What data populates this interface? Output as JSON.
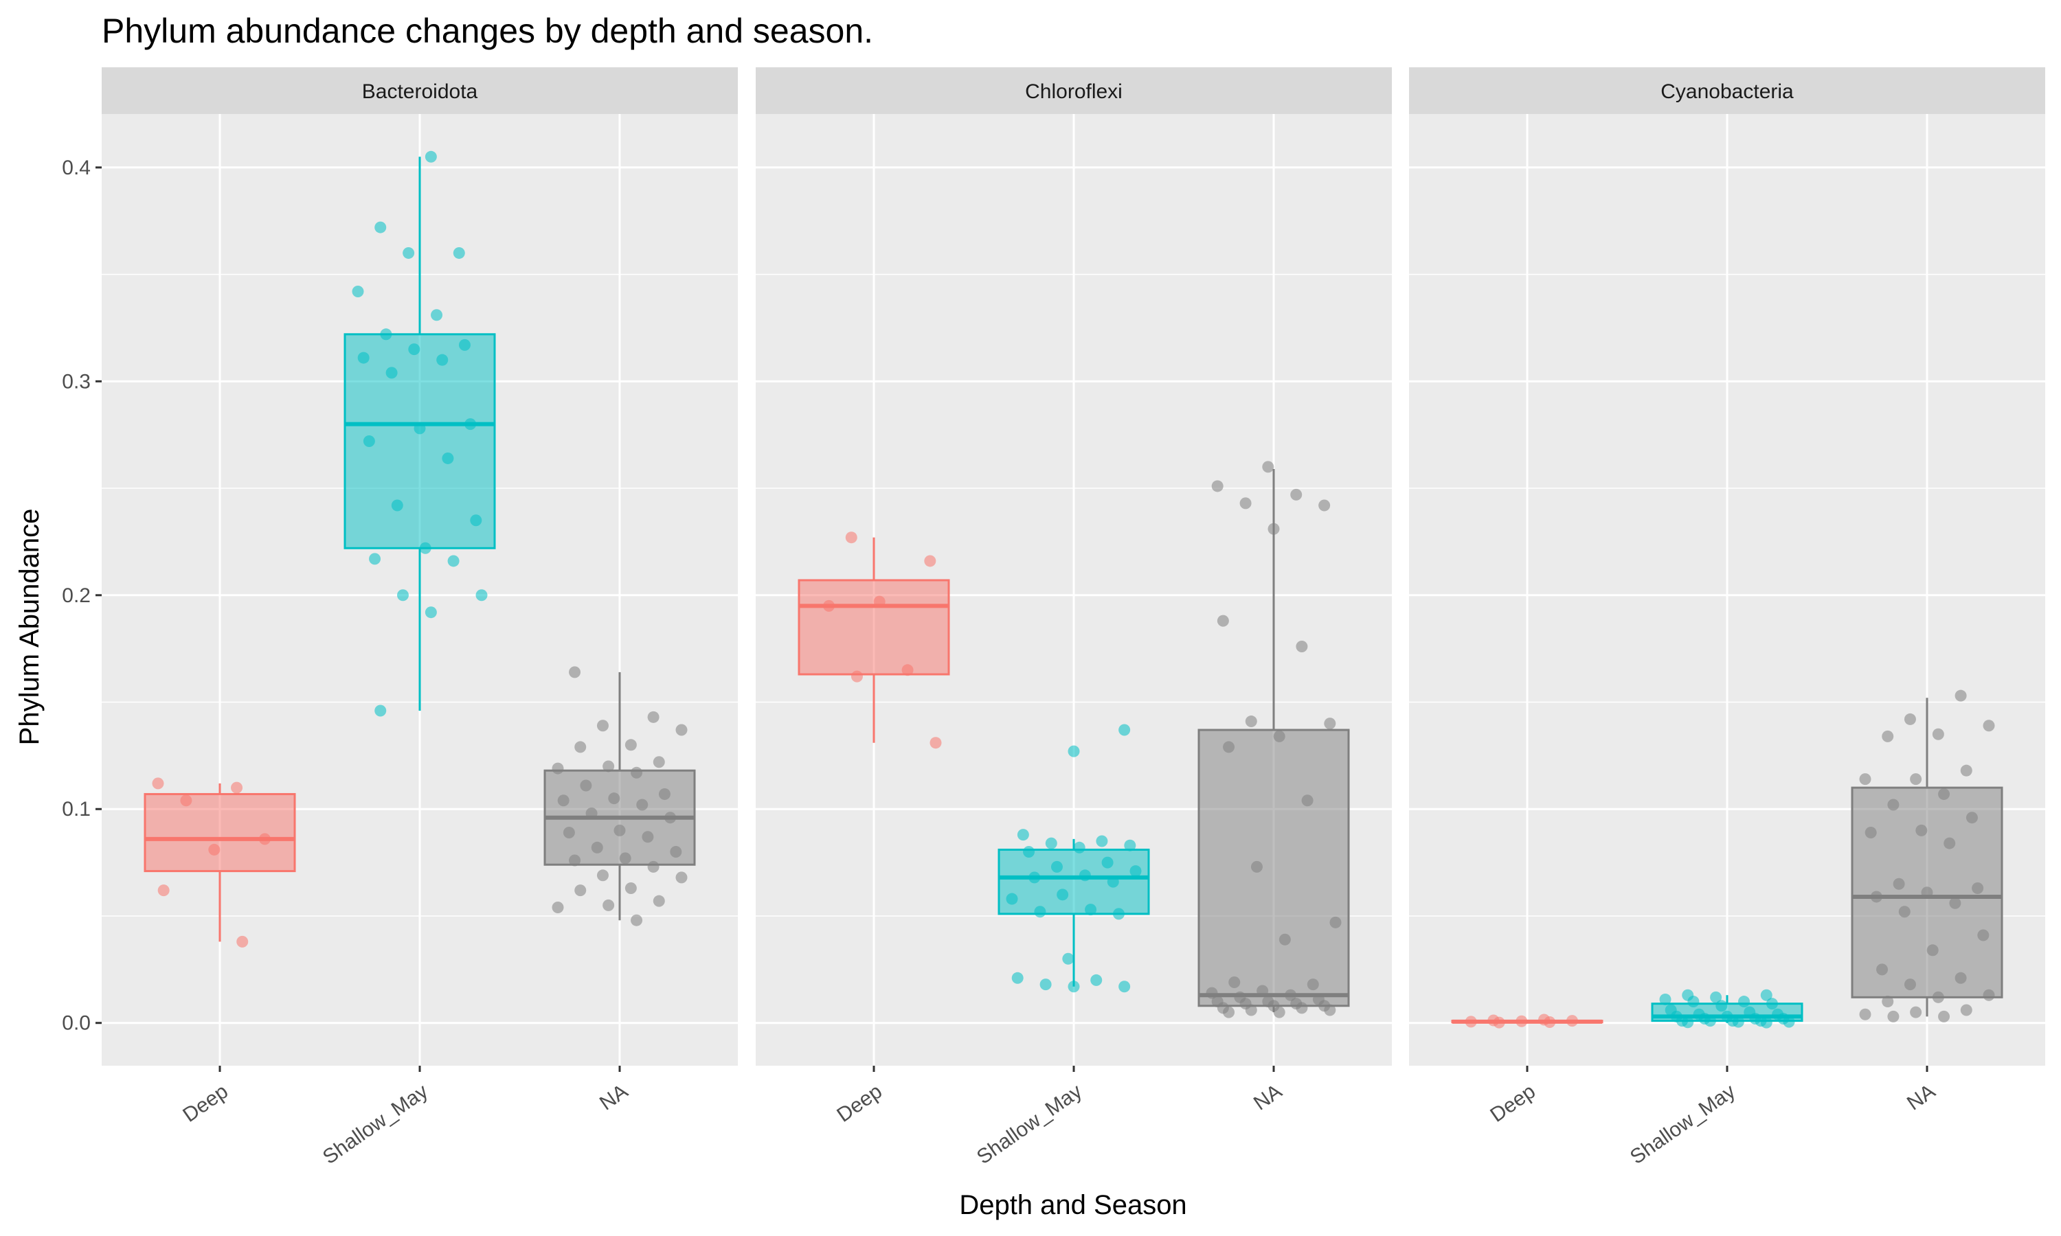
{
  "chart_data": {
    "type": "box",
    "title": "Phylum abundance changes by depth and season.",
    "xlabel": "Depth and Season",
    "ylabel": "Phylum Abundance",
    "categories": [
      "Deep",
      "Shallow_May",
      "NA"
    ],
    "yticks": [
      "0.0",
      "0.1",
      "0.2",
      "0.3",
      "0.4"
    ],
    "ylim": [
      -0.02,
      0.425
    ],
    "colors": {
      "Deep": "#F8766D",
      "Shallow_May": "#00BFC4",
      "NA": "#7F7F7F"
    },
    "panel_background": "#EBEBEB",
    "strip_background": "#D9D9D9",
    "grid": true,
    "legend": "none",
    "facets": [
      {
        "name": "Bacteroidota",
        "boxes": [
          {
            "category": "Deep",
            "whisker_low": 0.038,
            "q1": 0.071,
            "median": 0.086,
            "q3": 0.107,
            "whisker_high": 0.112,
            "points": [
              0.112,
              0.11,
              0.104,
              0.086,
              0.081,
              0.062,
              0.038
            ]
          },
          {
            "category": "Shallow_May",
            "whisker_low": 0.146,
            "q1": 0.222,
            "median": 0.28,
            "q3": 0.322,
            "whisker_high": 0.405,
            "points": [
              0.405,
              0.372,
              0.36,
              0.36,
              0.342,
              0.331,
              0.322,
              0.317,
              0.315,
              0.311,
              0.31,
              0.304,
              0.28,
              0.278,
              0.272,
              0.264,
              0.242,
              0.235,
              0.222,
              0.217,
              0.216,
              0.2,
              0.2,
              0.192,
              0.146
            ]
          },
          {
            "category": "NA",
            "whisker_low": 0.048,
            "q1": 0.074,
            "median": 0.096,
            "q3": 0.118,
            "whisker_high": 0.164,
            "points": [
              0.164,
              0.143,
              0.139,
              0.137,
              0.13,
              0.129,
              0.122,
              0.12,
              0.119,
              0.117,
              0.111,
              0.107,
              0.105,
              0.104,
              0.102,
              0.098,
              0.096,
              0.09,
              0.089,
              0.087,
              0.082,
              0.08,
              0.077,
              0.076,
              0.073,
              0.069,
              0.068,
              0.063,
              0.062,
              0.057,
              0.055,
              0.054,
              0.048
            ]
          }
        ]
      },
      {
        "name": "Chloroflexi",
        "boxes": [
          {
            "category": "Deep",
            "whisker_low": 0.131,
            "q1": 0.163,
            "median": 0.195,
            "q3": 0.207,
            "whisker_high": 0.227,
            "points": [
              0.227,
              0.216,
              0.197,
              0.195,
              0.165,
              0.162,
              0.131
            ]
          },
          {
            "category": "Shallow_May",
            "whisker_low": 0.017,
            "q1": 0.051,
            "median": 0.068,
            "q3": 0.081,
            "whisker_high": 0.086,
            "points": [
              0.137,
              0.127,
              0.088,
              0.085,
              0.084,
              0.083,
              0.082,
              0.08,
              0.075,
              0.073,
              0.071,
              0.069,
              0.068,
              0.066,
              0.06,
              0.058,
              0.053,
              0.052,
              0.051,
              0.03,
              0.021,
              0.02,
              0.018,
              0.017,
              0.017
            ]
          },
          {
            "category": "NA",
            "whisker_low": 0.005,
            "q1": 0.008,
            "median": 0.013,
            "q3": 0.137,
            "whisker_high": 0.259,
            "points": [
              0.26,
              0.251,
              0.247,
              0.243,
              0.242,
              0.231,
              0.188,
              0.176,
              0.141,
              0.14,
              0.134,
              0.129,
              0.104,
              0.073,
              0.047,
              0.039,
              0.019,
              0.018,
              0.015,
              0.014,
              0.013,
              0.012,
              0.011,
              0.01,
              0.01,
              0.009,
              0.009,
              0.008,
              0.008,
              0.007,
              0.007,
              0.006,
              0.006,
              0.005,
              0.005
            ]
          }
        ]
      },
      {
        "name": "Cyanobacteria",
        "boxes": [
          {
            "category": "Deep",
            "whisker_low": 0.0,
            "q1": 0.0003,
            "median": 0.0006,
            "q3": 0.001,
            "whisker_high": 0.0015,
            "points": [
              0.0015,
              0.0012,
              0.001,
              0.0008,
              0.0006,
              0.0004,
              0.0002
            ]
          },
          {
            "category": "Shallow_May",
            "whisker_low": 0.0,
            "q1": 0.001,
            "median": 0.003,
            "q3": 0.009,
            "whisker_high": 0.013,
            "points": [
              0.013,
              0.013,
              0.012,
              0.011,
              0.01,
              0.01,
              0.009,
              0.008,
              0.006,
              0.005,
              0.004,
              0.004,
              0.003,
              0.003,
              0.002,
              0.002,
              0.002,
              0.001,
              0.001,
              0.001,
              0.001,
              0.0005,
              0.0005,
              0.0003,
              0.0002
            ]
          },
          {
            "category": "NA",
            "whisker_low": 0.003,
            "q1": 0.012,
            "median": 0.059,
            "q3": 0.11,
            "whisker_high": 0.152,
            "points": [
              0.153,
              0.142,
              0.139,
              0.135,
              0.134,
              0.118,
              0.114,
              0.114,
              0.107,
              0.102,
              0.096,
              0.09,
              0.089,
              0.084,
              0.065,
              0.063,
              0.061,
              0.059,
              0.056,
              0.052,
              0.041,
              0.034,
              0.025,
              0.021,
              0.018,
              0.013,
              0.012,
              0.01,
              0.006,
              0.005,
              0.004,
              0.003,
              0.003
            ]
          }
        ]
      }
    ]
  }
}
